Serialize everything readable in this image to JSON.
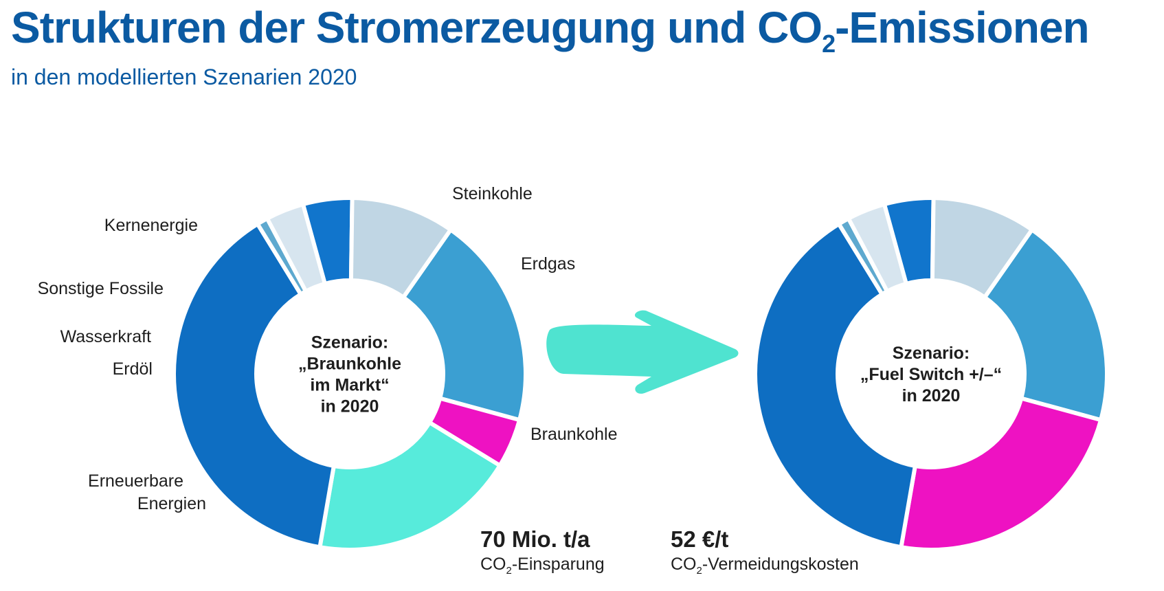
{
  "colors": {
    "title": "#0b5aa2",
    "subtitle": "#0b5aa2",
    "arrow": "#4fe3d0"
  },
  "header": {
    "title_pre": "Strukturen der Stromerzeugung und CO",
    "title_sub": "2",
    "title_post": "-Emissionen",
    "subtitle": "in den modellierten Szenarien 2020"
  },
  "arrow_icon": "arrow-right-icon",
  "chart_data": [
    {
      "type": "donut",
      "center_label": [
        "Szenario:",
        "„Braunkohle",
        "im Markt“",
        "in 2020"
      ],
      "segments": [
        {
          "name": "Steinkohle",
          "value": 19.5,
          "color": "#3b9fd2"
        },
        {
          "name": "Erdgas",
          "value": 4.5,
          "color": "#ee12c2"
        },
        {
          "name": "Braunkohle",
          "value": 19,
          "color": "#57ebdb"
        },
        {
          "name": "Erneuerbare Energien",
          "value": 38.5,
          "color": "#0e6ec2"
        },
        {
          "name": "Erdöl",
          "value": 1,
          "color": "#5ea9cf"
        },
        {
          "name": "Wasserkraft",
          "value": 3.5,
          "color": "#d7e5ef"
        },
        {
          "name": "Sonstige Fossile",
          "value": 4.5,
          "color": "#1175cc"
        },
        {
          "name": "Kernenergie",
          "value": 9.5,
          "color": "#c0d6e4"
        }
      ]
    },
    {
      "type": "donut",
      "center_label": [
        "Szenario:",
        "„Fuel Switch +/–“",
        "in 2020"
      ],
      "segments": [
        {
          "name": "Steinkohle",
          "value": 19.5,
          "color": "#3b9fd2"
        },
        {
          "name": "Erdgas",
          "value": 23.5,
          "color": "#ee12c2"
        },
        {
          "name": "Braunkohle",
          "value": 0,
          "color": "#57ebdb"
        },
        {
          "name": "Erneuerbare Energien",
          "value": 38.5,
          "color": "#0e6ec2"
        },
        {
          "name": "Erdöl",
          "value": 1,
          "color": "#5ea9cf"
        },
        {
          "name": "Wasserkraft",
          "value": 3.5,
          "color": "#d7e5ef"
        },
        {
          "name": "Sonstige Fossile",
          "value": 4.5,
          "color": "#1175cc"
        },
        {
          "name": "Kernenergie",
          "value": 9.5,
          "color": "#c0d6e4"
        }
      ]
    }
  ],
  "segment_labels": [
    {
      "lines": [
        "Steinkohle"
      ]
    },
    {
      "lines": [
        "Erdgas"
      ]
    },
    {
      "lines": [
        "Braunkohle"
      ]
    },
    {
      "lines": [
        "Erneuerbare",
        "Energien"
      ]
    },
    {
      "lines": [
        "Erdöl"
      ]
    },
    {
      "lines": [
        "Wasserkraft"
      ]
    },
    {
      "lines": [
        "Sonstige Fossile"
      ]
    },
    {
      "lines": [
        "Kernenergie"
      ]
    }
  ],
  "stats": [
    {
      "value": "70 Mio. t/a",
      "caption_pre": "CO",
      "caption_sub": "2",
      "caption_post": "-Einsparung"
    },
    {
      "value": "52 €/t",
      "caption_pre": "CO",
      "caption_sub": "2",
      "caption_post": "-Vermeidungskosten"
    }
  ]
}
